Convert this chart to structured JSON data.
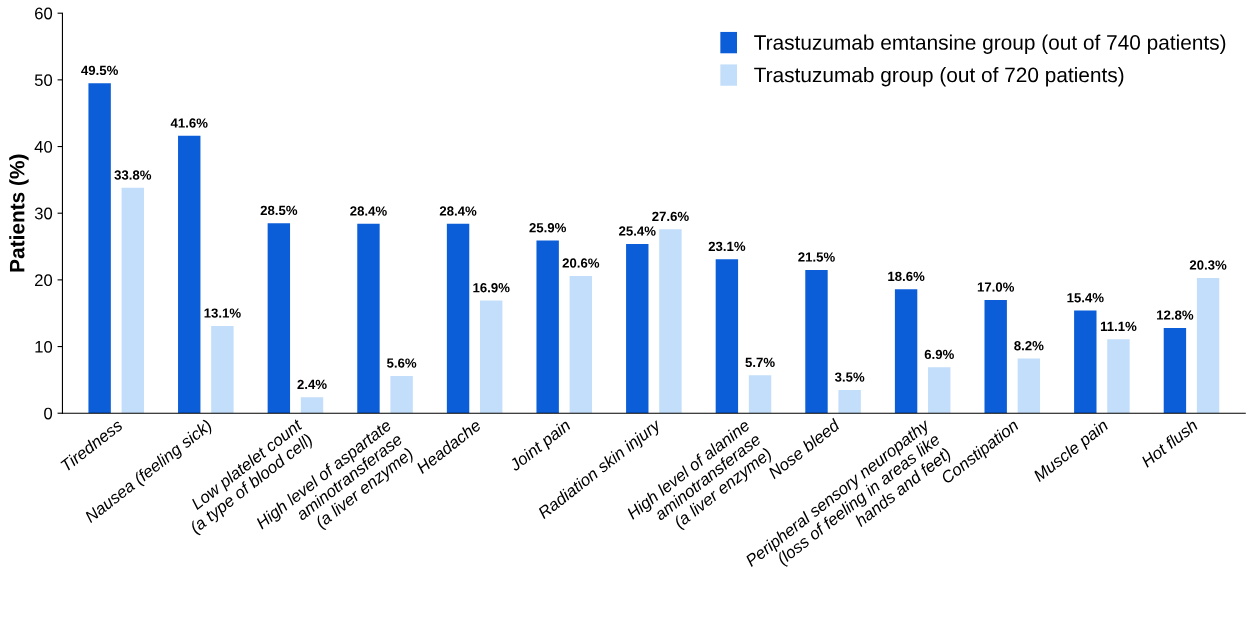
{
  "chart_data": {
    "type": "bar",
    "ylabel": "Patients (%)",
    "categories": [
      "Tiredness",
      "Nausea (feeling sick)",
      "Low platelet count\n(a type of blood cell)",
      "High level of aspartate\naminotransferase\n(a liver enzyme)",
      "Headache",
      "Joint pain",
      "Radiation skin injury",
      "High level of alanine\naminotransferase\n(a liver enzyme)",
      "Nose bleed",
      "Peripheral sensory neuropathy\n(loss of feeling in areas like\nhands and feet)",
      "Constipation",
      "Muscle pain",
      "Hot flush"
    ],
    "series": [
      {
        "name": "Trastuzumab emtansine group (out of 740 patients)",
        "color": "#0b5ed7",
        "values": [
          49.5,
          41.6,
          28.5,
          28.4,
          28.4,
          25.9,
          25.4,
          23.1,
          21.5,
          18.6,
          17.0,
          15.4,
          12.8
        ],
        "value_labels": [
          "49.5%",
          "41.6%",
          "28.5%",
          "28.4%",
          "28.4%",
          "25.9%",
          "25.4%",
          "23.1%",
          "21.5%",
          "18.6%",
          "17.0%",
          "15.4%",
          "12.8%"
        ]
      },
      {
        "name": "Trastuzumab group (out of 720 patients)",
        "color": "#c3defa",
        "values": [
          33.8,
          13.1,
          2.4,
          5.6,
          16.9,
          20.6,
          27.6,
          5.7,
          3.5,
          6.9,
          8.2,
          11.1,
          20.3
        ],
        "value_labels": [
          "33.8%",
          "13.1%",
          "2.4%",
          "5.6%",
          "16.9%",
          "20.6%",
          "27.6%",
          "5.7%",
          "3.5%",
          "6.9%",
          "8.2%",
          "11.1%",
          "20.3%"
        ]
      }
    ],
    "ylim": [
      0,
      60
    ],
    "yticks": [
      0,
      10,
      20,
      30,
      40,
      50,
      60
    ],
    "grid": false,
    "legend": "top right"
  }
}
